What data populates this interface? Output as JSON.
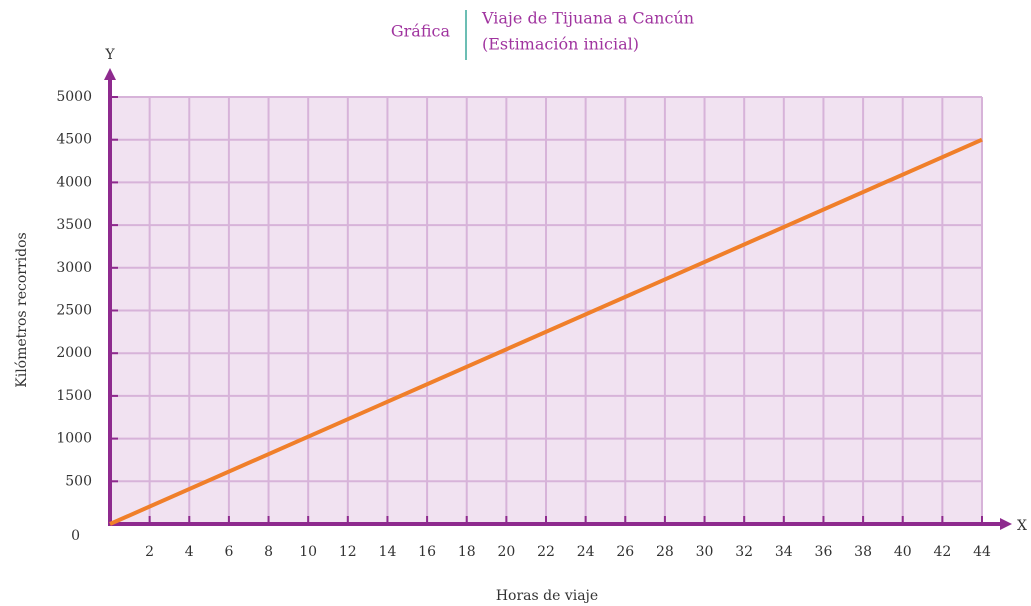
{
  "chart_data": {
    "type": "line",
    "label": "Gráfica",
    "title": "Viaje de Tijuana a Cancún",
    "subtitle": "(Estimación inicial)",
    "x_axis_name": "X",
    "y_axis_name": "Y",
    "x_label": "Horas de viaje",
    "y_label": "Kilómetros recorridos",
    "x": [
      0,
      44
    ],
    "series": [
      {
        "name": "Kilómetros recorridos",
        "color": "#f07f2a",
        "values": [
          0,
          4500
        ]
      }
    ],
    "xlim": [
      0,
      44
    ],
    "xticks": [
      2,
      4,
      6,
      8,
      10,
      12,
      14,
      16,
      18,
      20,
      22,
      24,
      26,
      28,
      30,
      32,
      34,
      36,
      38,
      40,
      42,
      44
    ],
    "ylim": [
      0,
      5000
    ],
    "yticks": [
      0,
      500,
      1000,
      1500,
      2000,
      2500,
      3000,
      3500,
      4000,
      4500,
      5000
    ],
    "grid": true
  }
}
